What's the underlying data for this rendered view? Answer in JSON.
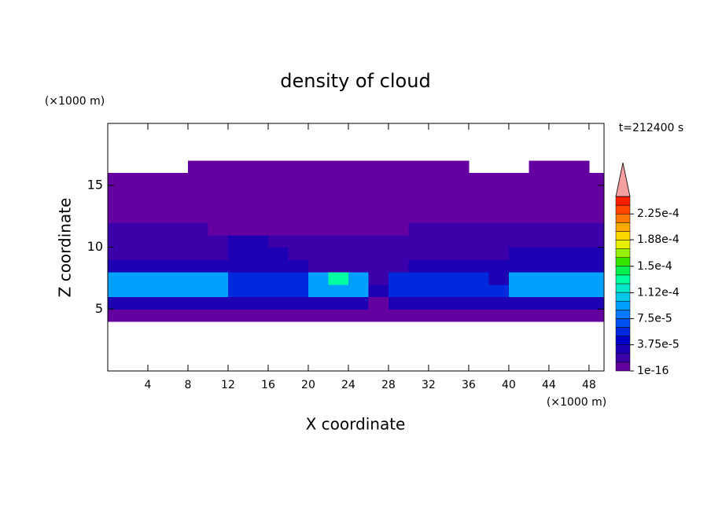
{
  "chart_data": {
    "type": "contour",
    "title": "density of cloud",
    "xlabel": "X coordinate",
    "ylabel": "Z coordinate",
    "x_unit": "(×1000 m)",
    "y_unit": "(×1000 m)",
    "annotation": "t=212400 s",
    "xlim": [
      0,
      49.5
    ],
    "ylim": [
      0,
      20
    ],
    "xticks": [
      4,
      8,
      12,
      16,
      20,
      24,
      28,
      32,
      36,
      40,
      44,
      48
    ],
    "yticks": [
      5,
      10,
      15
    ],
    "x": [
      1,
      3,
      5,
      7,
      9,
      11,
      13,
      15,
      17,
      19,
      21,
      23,
      25,
      27,
      29,
      31,
      33,
      35,
      37,
      39,
      41,
      43,
      45,
      47,
      49
    ],
    "y": [
      0.5,
      1.5,
      2.5,
      3.5,
      4.5,
      5.5,
      6.5,
      7.5,
      8.5,
      9.5,
      10.5,
      11.5,
      12.5,
      13.5,
      14.5,
      15.5,
      16.5,
      17.5,
      18.5,
      19.5
    ],
    "z": [
      [
        null,
        null,
        null,
        null,
        null,
        null,
        null,
        null,
        null,
        null,
        null,
        null,
        null,
        null,
        null,
        null,
        null,
        null,
        null,
        null,
        null,
        null,
        null,
        null,
        null
      ],
      [
        null,
        null,
        null,
        null,
        null,
        null,
        null,
        null,
        null,
        null,
        null,
        null,
        null,
        null,
        null,
        null,
        null,
        null,
        null,
        null,
        null,
        null,
        null,
        null,
        null
      ],
      [
        null,
        null,
        null,
        null,
        null,
        null,
        null,
        null,
        null,
        null,
        null,
        null,
        null,
        null,
        null,
        null,
        null,
        null,
        null,
        null,
        null,
        null,
        null,
        null,
        null
      ],
      [
        null,
        null,
        null,
        null,
        null,
        null,
        null,
        null,
        null,
        null,
        null,
        null,
        null,
        null,
        null,
        null,
        null,
        null,
        null,
        null,
        null,
        null,
        null,
        null,
        null
      ],
      [
        5e-06,
        5e-06,
        5e-06,
        5e-06,
        5e-06,
        5e-06,
        5e-06,
        5e-06,
        5e-06,
        5e-06,
        5e-06,
        5e-06,
        5e-06,
        5e-06,
        5e-06,
        5e-06,
        5e-06,
        5e-06,
        5e-06,
        5e-06,
        5e-06,
        5e-06,
        5e-06,
        5e-06,
        5e-06
      ],
      [
        3e-05,
        3e-05,
        3e-05,
        3e-05,
        3e-05,
        3e-05,
        3e-05,
        3e-05,
        3e-05,
        3e-05,
        3e-05,
        3e-05,
        3e-05,
        5e-06,
        3e-05,
        3e-05,
        3e-05,
        3e-05,
        3e-05,
        3e-05,
        3e-05,
        3e-05,
        3e-05,
        3e-05,
        3e-05
      ],
      [
        9e-05,
        9e-05,
        9e-05,
        9e-05,
        9e-05,
        9e-05,
        6e-05,
        6e-05,
        6e-05,
        6e-05,
        9e-05,
        9e-05,
        9e-05,
        3e-05,
        6e-05,
        6e-05,
        6e-05,
        6e-05,
        6e-05,
        6e-05,
        9e-05,
        9e-05,
        9e-05,
        9e-05,
        9e-05
      ],
      [
        9e-05,
        9e-05,
        9e-05,
        9e-05,
        9e-05,
        9e-05,
        5e-05,
        5e-05,
        5e-05,
        5e-05,
        9e-05,
        0.00013,
        9e-05,
        1.5e-05,
        6e-05,
        6e-05,
        6e-05,
        6e-05,
        6e-05,
        3e-05,
        9e-05,
        9e-05,
        9e-05,
        9e-05,
        9e-05
      ],
      [
        3e-05,
        3e-05,
        3e-05,
        3e-05,
        3e-05,
        3e-05,
        3e-05,
        3e-05,
        3e-05,
        3e-05,
        1.5e-05,
        1.5e-05,
        1.5e-05,
        1.5e-05,
        1.5e-05,
        3e-05,
        3e-05,
        3e-05,
        3e-05,
        3e-05,
        3e-05,
        3e-05,
        3e-05,
        3e-05,
        3e-05
      ],
      [
        1.5e-05,
        1.5e-05,
        1.5e-05,
        1.5e-05,
        1.5e-05,
        1.5e-05,
        3e-05,
        3e-05,
        3e-05,
        1.5e-05,
        1.5e-05,
        1.5e-05,
        1.5e-05,
        1.5e-05,
        1.5e-05,
        1.5e-05,
        1.5e-05,
        1.5e-05,
        1.5e-05,
        1.5e-05,
        3e-05,
        3e-05,
        3e-05,
        3e-05,
        3e-05
      ],
      [
        1.5e-05,
        1.5e-05,
        1.5e-05,
        1.5e-05,
        1.5e-05,
        1.5e-05,
        3e-05,
        3e-05,
        1.5e-05,
        1.5e-05,
        1.5e-05,
        1.5e-05,
        1.5e-05,
        1.5e-05,
        1.5e-05,
        1.5e-05,
        1.5e-05,
        1.5e-05,
        1.5e-05,
        1.5e-05,
        1.5e-05,
        1.5e-05,
        1.5e-05,
        1.5e-05,
        1.5e-05
      ],
      [
        1.5e-05,
        1.5e-05,
        1.5e-05,
        1.5e-05,
        1.5e-05,
        5e-06,
        5e-06,
        5e-06,
        5e-06,
        5e-06,
        5e-06,
        5e-06,
        5e-06,
        5e-06,
        5e-06,
        1.5e-05,
        1.5e-05,
        1.5e-05,
        1.5e-05,
        1.5e-05,
        1.5e-05,
        1.5e-05,
        1.5e-05,
        1.5e-05,
        1.5e-05
      ],
      [
        5e-06,
        5e-06,
        5e-06,
        5e-06,
        5e-06,
        5e-06,
        5e-06,
        5e-06,
        5e-06,
        5e-06,
        5e-06,
        5e-06,
        5e-06,
        5e-06,
        5e-06,
        5e-06,
        5e-06,
        5e-06,
        5e-06,
        5e-06,
        5e-06,
        5e-06,
        5e-06,
        5e-06,
        5e-06
      ],
      [
        5e-06,
        5e-06,
        5e-06,
        5e-06,
        5e-06,
        5e-06,
        5e-06,
        5e-06,
        5e-06,
        5e-06,
        5e-06,
        5e-06,
        5e-06,
        5e-06,
        5e-06,
        5e-06,
        5e-06,
        5e-06,
        5e-06,
        5e-06,
        5e-06,
        5e-06,
        5e-06,
        5e-06,
        5e-06
      ],
      [
        5e-06,
        5e-06,
        5e-06,
        5e-06,
        5e-06,
        5e-06,
        5e-06,
        5e-06,
        5e-06,
        5e-06,
        5e-06,
        5e-06,
        5e-06,
        5e-06,
        5e-06,
        5e-06,
        5e-06,
        5e-06,
        5e-06,
        5e-06,
        5e-06,
        5e-06,
        5e-06,
        5e-06,
        5e-06
      ],
      [
        5e-06,
        5e-06,
        5e-06,
        5e-06,
        5e-06,
        5e-06,
        5e-06,
        5e-06,
        5e-06,
        5e-06,
        5e-06,
        5e-06,
        5e-06,
        5e-06,
        5e-06,
        5e-06,
        5e-06,
        5e-06,
        5e-06,
        5e-06,
        5e-06,
        5e-06,
        5e-06,
        5e-06,
        5e-06
      ],
      [
        null,
        null,
        null,
        null,
        5e-06,
        5e-06,
        5e-06,
        5e-06,
        5e-06,
        5e-06,
        5e-06,
        5e-06,
        5e-06,
        5e-06,
        5e-06,
        5e-06,
        5e-06,
        5e-06,
        null,
        null,
        null,
        5e-06,
        5e-06,
        5e-06,
        null
      ],
      [
        null,
        null,
        null,
        null,
        null,
        null,
        null,
        null,
        null,
        null,
        null,
        null,
        null,
        null,
        null,
        null,
        null,
        null,
        null,
        null,
        null,
        null,
        null,
        null,
        null
      ],
      [
        null,
        null,
        null,
        null,
        null,
        null,
        null,
        null,
        null,
        null,
        null,
        null,
        null,
        null,
        null,
        null,
        null,
        null,
        null,
        null,
        null,
        null,
        null,
        null,
        null
      ],
      [
        null,
        null,
        null,
        null,
        null,
        null,
        null,
        null,
        null,
        null,
        null,
        null,
        null,
        null,
        null,
        null,
        null,
        null,
        null,
        null,
        null,
        null,
        null,
        null,
        null
      ]
    ],
    "colorbar": {
      "lim": [
        0,
        0.00025
      ],
      "colors": [
        "#6400a0",
        "#3c00aa",
        "#1e00b4",
        "#0000c8",
        "#0028dc",
        "#0050f0",
        "#0078ff",
        "#00a0ff",
        "#00c8e6",
        "#00e6c8",
        "#00ffa0",
        "#00f050",
        "#32e600",
        "#96f000",
        "#e6f000",
        "#ffd700",
        "#ffaa00",
        "#ff7800",
        "#ff4600",
        "#ff1e00"
      ],
      "extend_color": "#f4a0a0",
      "ticks": [
        {
          "value": 1e-16,
          "label": "1e-16"
        },
        {
          "value": 3.75e-05,
          "label": "3.75e-5"
        },
        {
          "value": 7.5e-05,
          "label": "7.5e-5"
        },
        {
          "value": 0.000112,
          "label": "1.12e-4"
        },
        {
          "value": 0.00015,
          "label": "1.5e-4"
        },
        {
          "value": 0.000188,
          "label": "1.88e-4"
        },
        {
          "value": 0.000225,
          "label": "2.25e-4"
        }
      ]
    }
  }
}
